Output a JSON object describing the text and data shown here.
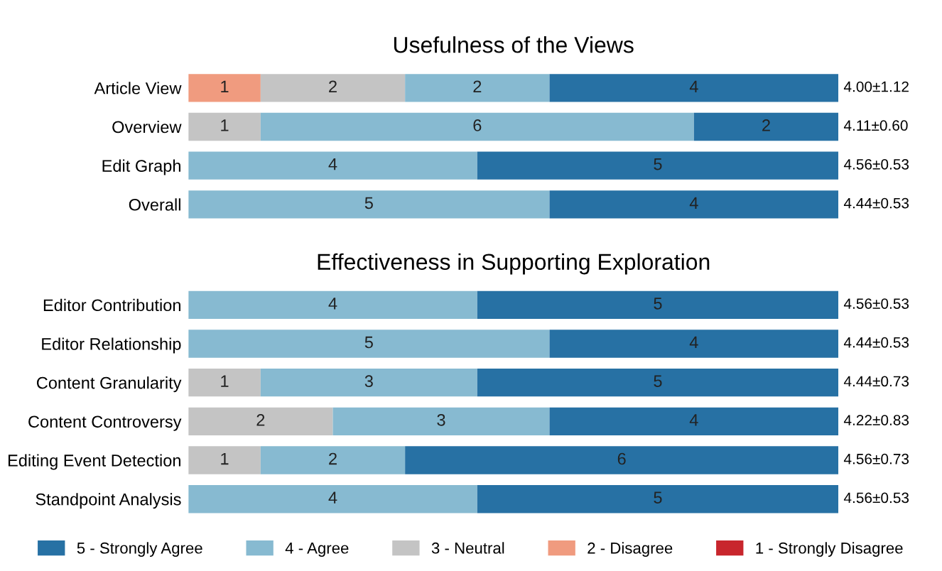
{
  "chart_data": [
    {
      "type": "bar",
      "orientation": "horizontal",
      "stacked": true,
      "title": "Usefulness of the Views",
      "categories": [
        "Article View",
        "Overview",
        "Edit Graph",
        "Overall"
      ],
      "xlim": [
        0,
        9
      ],
      "tick_labels": "y",
      "data_labels": true,
      "legend": "bottom",
      "series": [
        {
          "name": "2 - Disagree",
          "color": "#f09b7f",
          "values": [
            1,
            null,
            null,
            null
          ]
        },
        {
          "name": "3 - Neutral",
          "color": "#c4c4c4",
          "values": [
            2,
            1,
            null,
            null
          ]
        },
        {
          "name": "4 - Agree",
          "color": "#87bad1",
          "values": [
            2,
            6,
            4,
            5
          ]
        },
        {
          "name": "5 - Strongly Agree",
          "color": "#2771a4",
          "values": [
            4,
            2,
            5,
            4
          ]
        }
      ],
      "annotations": [
        "4.00±1.12",
        "4.11±0.60",
        "4.56±0.53",
        "4.44±0.53"
      ]
    },
    {
      "type": "bar",
      "orientation": "horizontal",
      "stacked": true,
      "title": "Effectiveness in Supporting Exploration",
      "categories": [
        "Editor Contribution",
        "Editor Relationship",
        "Content Granularity",
        "Content Controversy",
        "Editing Event Detection",
        "Standpoint Analysis"
      ],
      "xlim": [
        0,
        9
      ],
      "tick_labels": "y",
      "data_labels": true,
      "legend": "bottom",
      "series": [
        {
          "name": "1 - Strongly Disagree",
          "color": "#c8262d",
          "values": [
            null,
            null,
            null,
            null,
            null,
            null
          ]
        },
        {
          "name": "2 - Disagree",
          "color": "#f09b7f",
          "values": [
            null,
            null,
            null,
            null,
            null,
            null
          ]
        },
        {
          "name": "3 - Neutral",
          "color": "#c4c4c4",
          "values": [
            null,
            null,
            1,
            2,
            1,
            null
          ]
        },
        {
          "name": "4 - Agree",
          "color": "#87bad1",
          "values": [
            4,
            5,
            3,
            3,
            2,
            4
          ]
        },
        {
          "name": "5 - Strongly Agree",
          "color": "#2771a4",
          "values": [
            5,
            4,
            5,
            4,
            6,
            5
          ]
        }
      ],
      "annotations": [
        "4.56±0.53",
        "4.44±0.53",
        "4.44±0.73",
        "4.22±0.83",
        "4.56±0.73",
        "4.56±0.53"
      ]
    }
  ]
}
